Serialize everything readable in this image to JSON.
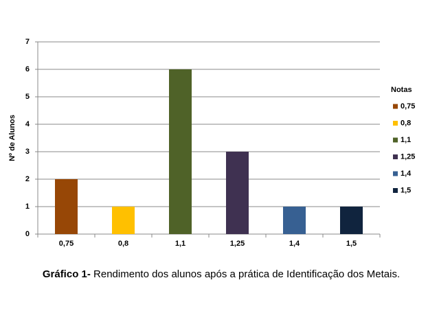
{
  "chart_data": {
    "type": "bar",
    "categories": [
      "0,75",
      "0,8",
      "1,1",
      "1,25",
      "1,4",
      "1,5"
    ],
    "values": [
      2,
      1,
      6,
      3,
      1,
      1
    ],
    "colors": [
      "#974706",
      "#ffc000",
      "#4f6228",
      "#3f3151",
      "#376092",
      "#10243e"
    ],
    "ylim": [
      0,
      7
    ],
    "yticks": [
      0,
      1,
      2,
      3,
      4,
      5,
      6,
      7
    ],
    "grid": true,
    "ylabel": "Nº de Alunos",
    "legend_title": "Notas",
    "legend": "right",
    "caption": {
      "label": "Gráfico 1-",
      "text": " Rendimento dos alunos após a prática de Identificação dos Metais."
    }
  }
}
